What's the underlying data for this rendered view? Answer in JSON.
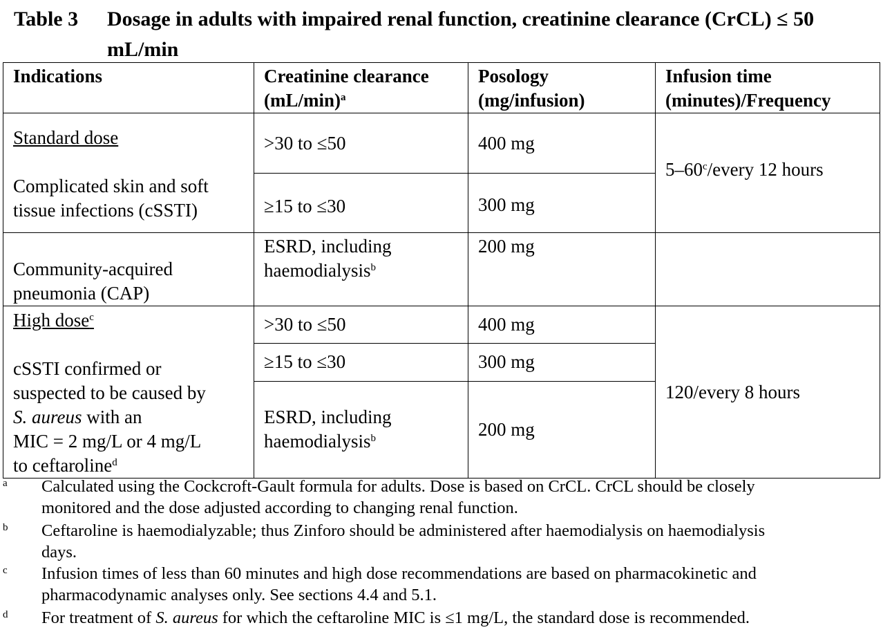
{
  "title": {
    "number": "Table 3",
    "text": "Dosage in adults with impaired renal function, creatinine clearance (CrCL) ≤ 50 mL/min"
  },
  "headers": {
    "indications": "Indications",
    "crcl_line1": "Creatinine clearance",
    "crcl_line2": "(mL/min)",
    "crcl_sup": "a",
    "posology_line1": "Posology",
    "posology_line2": "(mg/infusion)",
    "infusion_line1": "Infusion time",
    "infusion_line2": "(minutes)/Frequency"
  },
  "standard": {
    "label": "Standard dose",
    "ind_cssti_1": "Complicated skin and soft",
    "ind_cssti_2": "tissue infections (cSSTI)",
    "ind_cap_1": "Community-acquired",
    "ind_cap_2": "pneumonia (CAP)",
    "crcl_1": ">30 to ≤50",
    "crcl_2": "≥15 to ≤30",
    "crcl_3_1": "ESRD, including",
    "crcl_3_2": "haemodialysis",
    "crcl_3_sup": "b",
    "dose_1": "400 mg",
    "dose_2": "300 mg",
    "dose_3": "200 mg",
    "infusion": "5–60",
    "infusion_sup": "c",
    "infusion_suffix": "/every 12 hours"
  },
  "high": {
    "label": "High dose",
    "label_sup": "c",
    "ind_1": "cSSTI confirmed or",
    "ind_2": "suspected to be caused by",
    "ind_3_italic": "S. aureus",
    "ind_3_rest": " with an",
    "ind_4": "MIC = 2 mg/L or 4 mg/L",
    "ind_5": "to ceftaroline",
    "ind_5_sup": "d",
    "crcl_1": ">30 to ≤50",
    "crcl_2": "≥15 to ≤30",
    "crcl_3_1": "ESRD, including",
    "crcl_3_2": "haemodialysis",
    "crcl_3_sup": "b",
    "dose_1": "400 mg",
    "dose_2": "300 mg",
    "dose_3": "200 mg",
    "infusion": "120/every 8 hours"
  },
  "footnotes": {
    "a_key": "a",
    "a_line1": "Calculated using the Cockcroft-Gault formula for adults. Dose is based on CrCL. CrCL should be closely",
    "a_line2": "monitored and the dose adjusted according to changing renal function.",
    "b_key": "b",
    "b_line1": "Ceftaroline is haemodialyzable; thus Zinforo should be administered after haemodialysis on haemodialysis",
    "b_line2": "days.",
    "c_key": "c",
    "c_line1": "Infusion times of less than 60 minutes and high dose recommendations are based on pharmacokinetic and",
    "c_line2": "pharmacodynamic analyses only. See sections 4.4 and 5.1.",
    "d_key": "d",
    "d_pre": "For treatment of ",
    "d_italic": "S. aureus",
    "d_post": " for which the ceftaroline MIC is ≤1 mg/L, the standard dose is recommended."
  }
}
